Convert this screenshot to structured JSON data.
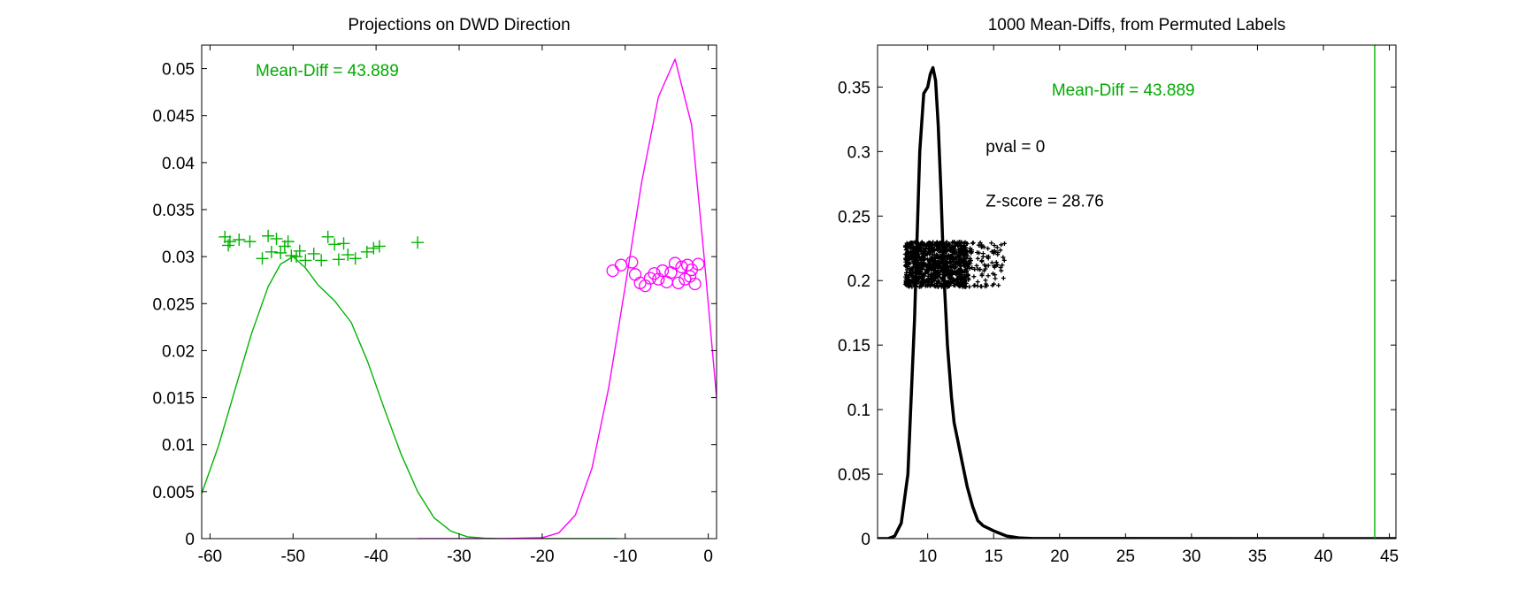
{
  "chart_data": [
    {
      "type": "line",
      "title": "Projections on DWD Direction",
      "xlabel": "",
      "ylabel": "",
      "xlim": [
        -61,
        1
      ],
      "ylim": [
        0,
        0.0525
      ],
      "x_ticks": [
        -60,
        -50,
        -40,
        -30,
        -20,
        -10,
        0
      ],
      "x_tick_labels": [
        "-60",
        "-50",
        "-40",
        "-30",
        "-20",
        "-10",
        "0"
      ],
      "y_ticks": [
        0,
        0.005,
        0.01,
        0.015,
        0.02,
        0.025,
        0.03,
        0.035,
        0.04,
        0.045,
        0.05
      ],
      "y_tick_labels": [
        "0",
        "0.005",
        "0.01",
        "0.015",
        "0.02",
        "0.025",
        "0.03",
        "0.035",
        "0.04",
        "0.045",
        "0.05"
      ],
      "grid": false,
      "annotations": [
        {
          "text": "Mean-Diff = 43.889",
          "x": -54.5,
          "y": 0.0492,
          "color": "#00aa00"
        }
      ],
      "series": [
        {
          "kind": "line",
          "color": "#00b400",
          "x": [
            -61,
            -59,
            -57,
            -55,
            -53,
            -51.5,
            -50,
            -48.5,
            -47,
            -45,
            -43,
            -41,
            -39,
            -37,
            -35,
            -33,
            -31,
            -29,
            -27,
            -25,
            -20,
            -15,
            -11
          ],
          "y": [
            0.0048,
            0.0098,
            0.0158,
            0.0218,
            0.0268,
            0.0292,
            0.03,
            0.0288,
            0.027,
            0.0253,
            0.023,
            0.0188,
            0.0138,
            0.009,
            0.005,
            0.0022,
            0.0008,
            0.0002,
            5e-05,
            0.0,
            0.0,
            0.0,
            0.0
          ]
        },
        {
          "kind": "line",
          "color": "#ff00ff",
          "x": [
            -35,
            -25,
            -20,
            -18,
            -16,
            -14,
            -12,
            -10,
            -8,
            -6,
            -4,
            -2,
            -0.5,
            1
          ],
          "y": [
            0.0,
            0.0,
            0.0001,
            0.0006,
            0.0025,
            0.0075,
            0.016,
            0.0268,
            0.038,
            0.047,
            0.051,
            0.044,
            0.03,
            0.015
          ]
        },
        {
          "kind": "scatter",
          "marker": "plus",
          "color": "#00b400",
          "x": [
            -58.2,
            -57.6,
            -57.8,
            -56.5,
            -55.2,
            -53.7,
            -53.0,
            -52.6,
            -52.0,
            -51.5,
            -51.0,
            -50.6,
            -50.2,
            -49.6,
            -49.2,
            -48.5,
            -47.5,
            -46.6,
            -45.8,
            -45.0,
            -44.5,
            -43.9,
            -43.4,
            -42.5,
            -41.1,
            -40.3,
            -39.6,
            -35.0
          ],
          "y": [
            0.0321,
            0.0316,
            0.0312,
            0.0318,
            0.0316,
            0.0298,
            0.0322,
            0.0305,
            0.0319,
            0.0304,
            0.0311,
            0.0316,
            0.0301,
            0.03,
            0.0306,
            0.0296,
            0.0303,
            0.0296,
            0.0321,
            0.0313,
            0.0297,
            0.0314,
            0.0302,
            0.0298,
            0.0305,
            0.0309,
            0.0311,
            0.0315
          ]
        },
        {
          "kind": "scatter",
          "marker": "circle",
          "color": "#ff00ff",
          "x": [
            -11.5,
            -10.5,
            -9.2,
            -8.8,
            -8.2,
            -7.6,
            -7.0,
            -6.5,
            -6.0,
            -5.5,
            -5.0,
            -4.5,
            -4.0,
            -3.6,
            -3.2,
            -2.8,
            -2.5,
            -2.2,
            -2.0,
            -1.6,
            -1.2
          ],
          "y": [
            0.0285,
            0.0291,
            0.0294,
            0.0281,
            0.0272,
            0.0269,
            0.0277,
            0.0282,
            0.0276,
            0.0285,
            0.0273,
            0.0283,
            0.0293,
            0.0272,
            0.0289,
            0.0276,
            0.0291,
            0.0279,
            0.0286,
            0.0271,
            0.0292
          ]
        }
      ]
    },
    {
      "type": "line",
      "title": "1000 Mean-Diffs, from Permuted Labels",
      "xlabel": "",
      "ylabel": "",
      "xlim": [
        6.2,
        45.5
      ],
      "ylim": [
        0,
        0.3825
      ],
      "x_ticks": [
        10,
        15,
        20,
        25,
        30,
        35,
        40,
        45
      ],
      "x_tick_labels": [
        "10",
        "15",
        "20",
        "25",
        "30",
        "35",
        "40",
        "45"
      ],
      "y_ticks": [
        0,
        0.05,
        0.1,
        0.15,
        0.2,
        0.25,
        0.3,
        0.35
      ],
      "y_tick_labels": [
        "0",
        "0.05",
        "0.1",
        "0.15",
        "0.2",
        "0.25",
        "0.3",
        "0.35"
      ],
      "grid": false,
      "annotations": [
        {
          "text": "Mean-Diff = 43.889",
          "x": 19.4,
          "y": 0.3435,
          "color": "#00aa00"
        },
        {
          "text": "pval = 0",
          "x": 14.4,
          "y": 0.2995,
          "color": "#000000"
        },
        {
          "text": "Z-score = 28.76",
          "x": 14.4,
          "y": 0.2575,
          "color": "#000000"
        }
      ],
      "series": [
        {
          "kind": "line",
          "color": "#000000",
          "x": [
            6.2,
            7.0,
            7.5,
            8.0,
            8.5,
            9.0,
            9.4,
            9.7,
            10.0,
            10.2,
            10.4,
            10.6,
            10.8,
            11.0,
            11.2,
            11.5,
            11.8,
            12.0,
            12.3,
            12.6,
            13.0,
            13.4,
            13.8,
            14.2,
            14.6,
            15.0,
            15.5,
            16.0,
            17.0,
            18.0,
            45.5
          ],
          "y": [
            0.0,
            0.0,
            0.002,
            0.012,
            0.05,
            0.17,
            0.3,
            0.345,
            0.35,
            0.36,
            0.365,
            0.355,
            0.32,
            0.27,
            0.21,
            0.15,
            0.11,
            0.09,
            0.075,
            0.06,
            0.04,
            0.025,
            0.014,
            0.01,
            0.008,
            0.006,
            0.004,
            0.002,
            0.0005,
            0.0001,
            0.0
          ]
        },
        {
          "kind": "vline",
          "color": "#00b400",
          "x": 43.889
        }
      ],
      "scatter_band": {
        "color": "#000000",
        "count": 1000,
        "x_min": 8.3,
        "x_core_max": 13.0,
        "x_tail_max": 16.0,
        "y_min": 0.195,
        "y_max": 0.23
      }
    }
  ]
}
